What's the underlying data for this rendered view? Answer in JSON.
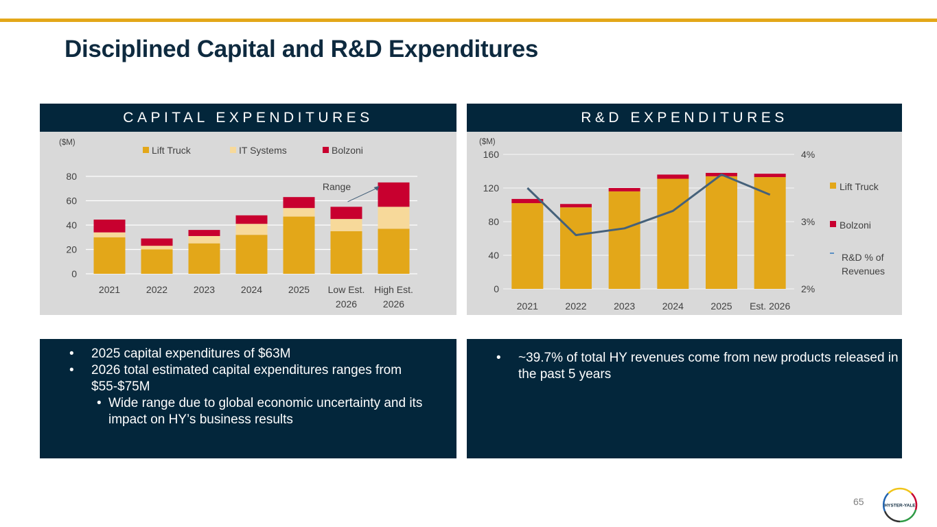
{
  "slide": {
    "title": "Disciplined Capital and R&D Expenditures",
    "page_number": "65",
    "logo_text": "HYSTER-YALE",
    "colors": {
      "accent_bar": "#e3a719",
      "navy": "#03263b",
      "lift_truck": "#e3a719",
      "it_systems": "#f7d99a",
      "bolzoni": "#c8002f",
      "line": "#45617a",
      "panel_bg": "#d9d9d9"
    }
  },
  "capex_panel": {
    "header": "CAPITAL EXPENDITURES",
    "bullets": [
      {
        "level": 1,
        "text": "2025 capital expenditures of $63M"
      },
      {
        "level": 1,
        "text": "2026 total estimated capital expenditures ranges from $55-$75M"
      },
      {
        "level": 2,
        "text": "Wide range due to global economic uncertainty and its impact on HY’s business results"
      }
    ]
  },
  "rd_panel": {
    "header": "R&D EXPENDITURES",
    "bullets": [
      {
        "level": 1,
        "text": "~39.7% of total HY revenues come from new products released in the past 5 years"
      }
    ]
  },
  "chart_data": [
    {
      "type": "bar",
      "stacked": true,
      "title": "Capital Expenditures",
      "unit_label": "($M)",
      "categories": [
        [
          "2021"
        ],
        [
          "2022"
        ],
        [
          "2023"
        ],
        [
          "2024"
        ],
        [
          "2025"
        ],
        [
          "Low Est.",
          "2026"
        ],
        [
          "High Est.",
          "2026"
        ]
      ],
      "series": [
        {
          "name": "Lift Truck",
          "color": "#e3a719",
          "values": [
            30,
            20,
            25,
            32,
            47,
            35,
            37
          ]
        },
        {
          "name": "IT Systems",
          "color": "#f7d99a",
          "values": [
            4,
            3,
            6,
            9,
            7,
            10,
            18
          ]
        },
        {
          "name": "Bolzoni",
          "color": "#c8002f",
          "values": [
            10.5,
            6,
            5,
            7,
            9,
            10,
            20
          ]
        }
      ],
      "ylim": [
        0,
        80
      ],
      "yticks": [
        0,
        20,
        40,
        60,
        80
      ],
      "grid": true,
      "legend": "top",
      "annotation": {
        "text": "Range",
        "points_from": "Low Est. 2026",
        "points_to": "High Est. 2026"
      }
    },
    {
      "type": "bar",
      "stacked": true,
      "title": "R&D Expenditures",
      "unit_label": "($M)",
      "categories": [
        "2021",
        "2022",
        "2023",
        "2024",
        "2025",
        "Est. 2026"
      ],
      "series": [
        {
          "name": "Lift Truck",
          "color": "#e3a719",
          "values": [
            102,
            97,
            116,
            131,
            134,
            133
          ]
        },
        {
          "name": "Bolzoni",
          "color": "#c8002f",
          "values": [
            5,
            4,
            4,
            5,
            4,
            4
          ]
        }
      ],
      "line_series": {
        "name": "R&D % of Revenues",
        "color": "#45617a",
        "axis": "right",
        "values": [
          3.5,
          2.8,
          2.9,
          3.16,
          3.7,
          3.4
        ]
      },
      "ylim": [
        0,
        160
      ],
      "yticks": [
        0,
        40,
        80,
        120,
        160
      ],
      "y2lim": [
        2,
        4
      ],
      "y2ticks": [
        "2%",
        "3%",
        "4%"
      ],
      "grid": true,
      "legend": "right"
    }
  ]
}
